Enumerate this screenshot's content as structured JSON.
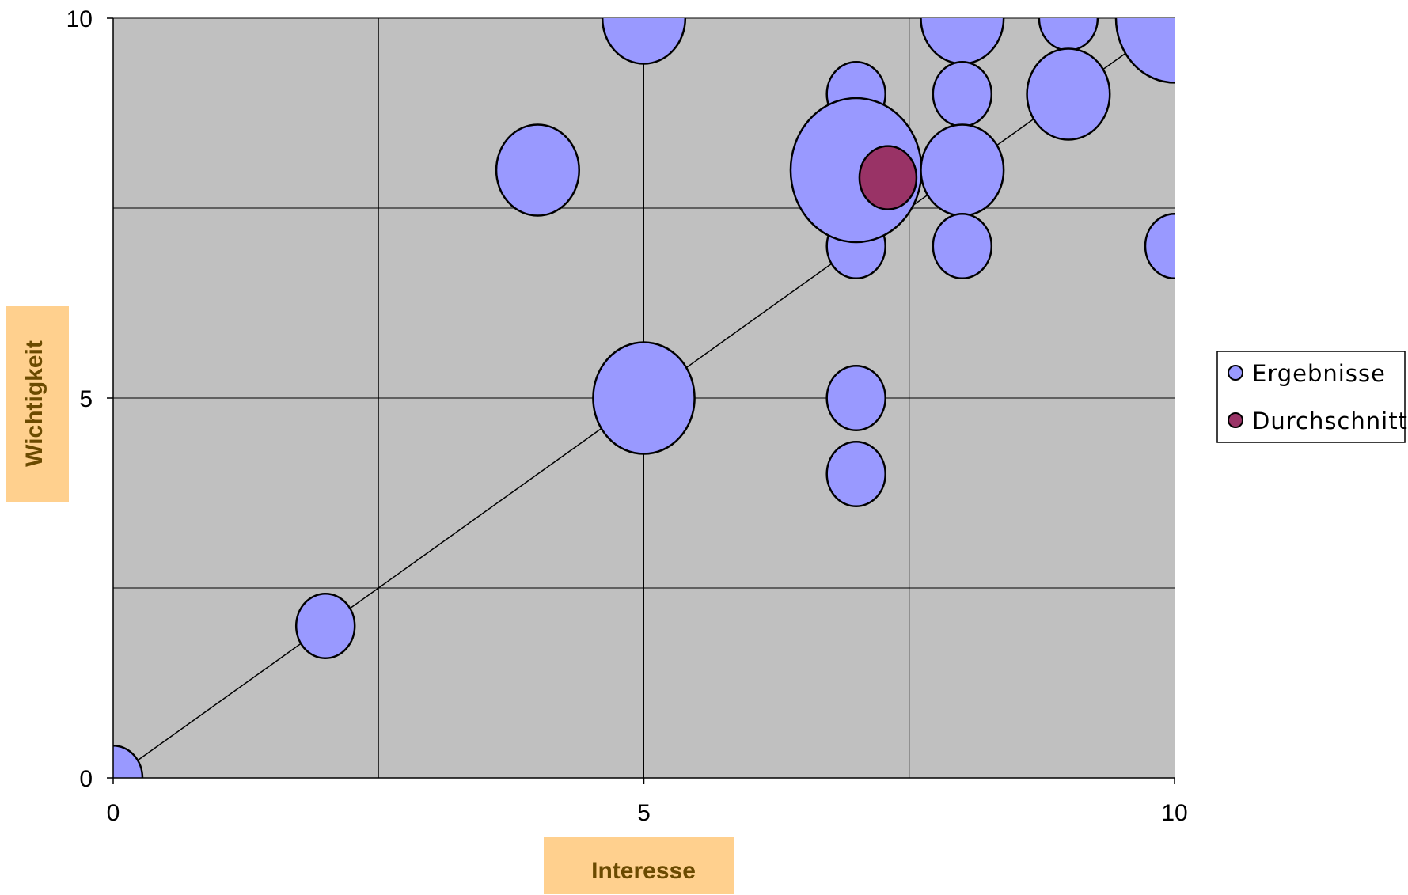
{
  "chart_data": {
    "type": "bubble",
    "title": "",
    "xlabel": "Interesse",
    "ylabel": "Wichtigkeit",
    "xlim": [
      0,
      10
    ],
    "ylim": [
      0,
      10
    ],
    "x_ticks": [
      0,
      5,
      10
    ],
    "y_ticks": [
      0,
      5,
      10
    ],
    "grid": "on",
    "legend": "right",
    "reference_line": {
      "from": [
        0,
        0
      ],
      "to": [
        10,
        10
      ]
    },
    "colors": {
      "plot_background": "#c0c0c0",
      "axis_title_box": "#ffd08e",
      "axis_title_text": "#6b4a00",
      "gridline": "#000000"
    },
    "series": [
      {
        "name": "Ergebnisse",
        "color": "#9999ff",
        "points": [
          {
            "x": 0,
            "y": 0,
            "size": 1
          },
          {
            "x": 2,
            "y": 2,
            "size": 1
          },
          {
            "x": 4,
            "y": 8,
            "size": 2
          },
          {
            "x": 5,
            "y": 10,
            "size": 2
          },
          {
            "x": 5,
            "y": 5,
            "size": 3
          },
          {
            "x": 7,
            "y": 9,
            "size": 1
          },
          {
            "x": 7,
            "y": 7,
            "size": 1
          },
          {
            "x": 7,
            "y": 8,
            "size": 5
          },
          {
            "x": 7,
            "y": 5,
            "size": 1
          },
          {
            "x": 7,
            "y": 4,
            "size": 1
          },
          {
            "x": 8,
            "y": 10,
            "size": 2
          },
          {
            "x": 8,
            "y": 9,
            "size": 1
          },
          {
            "x": 8,
            "y": 8,
            "size": 2
          },
          {
            "x": 8,
            "y": 7,
            "size": 1
          },
          {
            "x": 9,
            "y": 10,
            "size": 1
          },
          {
            "x": 9,
            "y": 9,
            "size": 2
          },
          {
            "x": 10,
            "y": 10,
            "size": 4
          },
          {
            "x": 10,
            "y": 7,
            "size": 1
          }
        ]
      },
      {
        "name": "Durchschnitt",
        "color": "#993366",
        "points": [
          {
            "x": 7.3,
            "y": 7.9,
            "size": 1
          }
        ]
      }
    ]
  }
}
